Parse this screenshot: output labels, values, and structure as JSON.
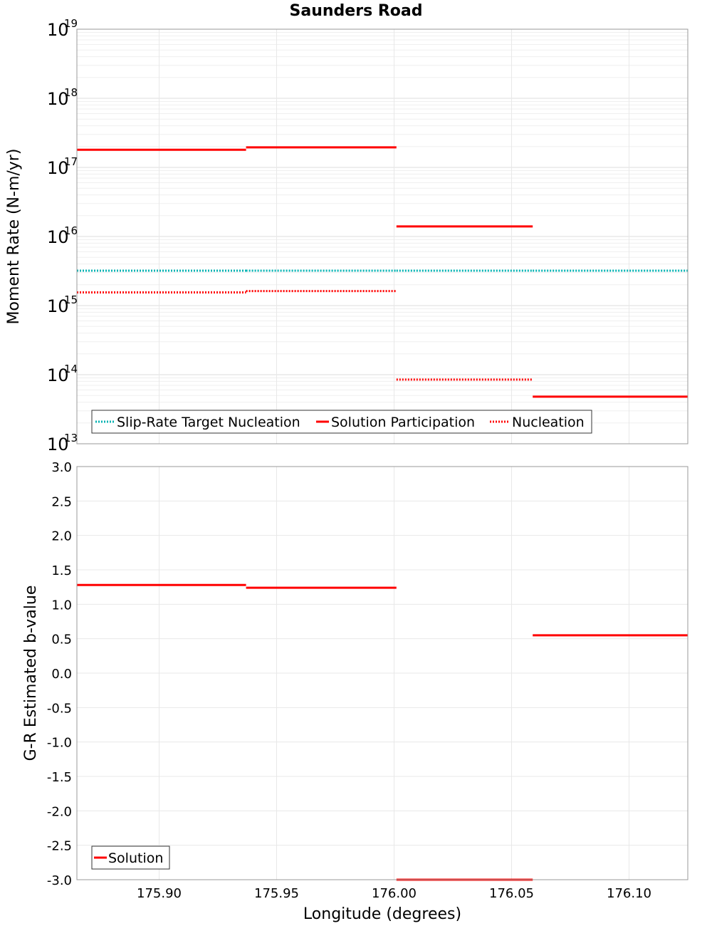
{
  "chart_data": [
    {
      "type": "line",
      "title": "Saunders Road",
      "xlabel": "Longitude (degrees)",
      "ylabel": "Moment Rate (N-m/yr)",
      "yscale": "log",
      "xlim": [
        175.865,
        176.125
      ],
      "ylim": [
        10000000000000.0,
        1e+19
      ],
      "grid": true,
      "ytick_labels": [
        {
          "base": "10",
          "exp": "13",
          "value": 10000000000000.0
        },
        {
          "base": "10",
          "exp": "14",
          "value": 100000000000000.0
        },
        {
          "base": "10",
          "exp": "15",
          "value": 1000000000000000.0
        },
        {
          "base": "10",
          "exp": "16",
          "value": 1e+16
        },
        {
          "base": "10",
          "exp": "17",
          "value": 1e+17
        },
        {
          "base": "10",
          "exp": "18",
          "value": 1e+18
        },
        {
          "base": "10",
          "exp": "19",
          "value": 1e+19
        }
      ],
      "series": [
        {
          "name": "Slip-Rate Target Nucleation",
          "color": "#00b2b2",
          "style": "dotted",
          "segments": [
            {
              "x": [
                175.865,
                175.937
              ],
              "y": 3200000000000000.0
            },
            {
              "x": [
                175.937,
                176.001
              ],
              "y": 3200000000000000.0
            },
            {
              "x": [
                176.001,
                176.059
              ],
              "y": 3200000000000000.0
            },
            {
              "x": [
                176.059,
                176.125
              ],
              "y": 3200000000000000.0
            }
          ]
        },
        {
          "name": "Solution Participation",
          "color": "#ff0000",
          "style": "solid",
          "segments": [
            {
              "x": [
                175.865,
                175.937
              ],
              "y": 1.8e+17
            },
            {
              "x": [
                175.937,
                176.001
              ],
              "y": 1.95e+17
            },
            {
              "x": [
                176.001,
                176.059
              ],
              "y": 1.4e+16
            },
            {
              "x": [
                176.059,
                176.125
              ],
              "y": 48000000000000.0
            }
          ]
        },
        {
          "name": "Nucleation",
          "color": "#ff0000",
          "style": "dotted",
          "segments": [
            {
              "x": [
                175.865,
                175.937
              ],
              "y": 1550000000000000.0
            },
            {
              "x": [
                175.937,
                176.001
              ],
              "y": 1620000000000000.0
            },
            {
              "x": [
                176.001,
                176.059
              ],
              "y": 85000000000000.0
            }
          ]
        }
      ],
      "legend": "bottom-left"
    },
    {
      "type": "line",
      "title": "",
      "xlabel": "Longitude (degrees)",
      "ylabel": "G-R Estimated b-value",
      "xlim": [
        175.865,
        176.125
      ],
      "ylim": [
        -3.0,
        3.0
      ],
      "grid": true,
      "xticks": [
        175.9,
        175.95,
        176.0,
        176.05,
        176.1
      ],
      "xtick_labels": [
        "175.90",
        "175.95",
        "176.00",
        "176.05",
        "176.10"
      ],
      "ytick_labels": [
        "3.0",
        "2.5",
        "2.0",
        "1.5",
        "1.0",
        "0.5",
        "0.0",
        "-0.5",
        "-1.0",
        "-1.5",
        "-2.0",
        "-2.5",
        "-3.0"
      ],
      "series": [
        {
          "name": "Solution",
          "color": "#ff0000",
          "style": "solid",
          "segments": [
            {
              "x": [
                175.865,
                175.937
              ],
              "y": 1.28
            },
            {
              "x": [
                175.937,
                176.001
              ],
              "y": 1.24
            },
            {
              "x": [
                176.001,
                176.059
              ],
              "y": -3.0
            },
            {
              "x": [
                176.059,
                176.125
              ],
              "y": 0.55
            }
          ]
        }
      ],
      "legend": "bottom-left"
    }
  ]
}
